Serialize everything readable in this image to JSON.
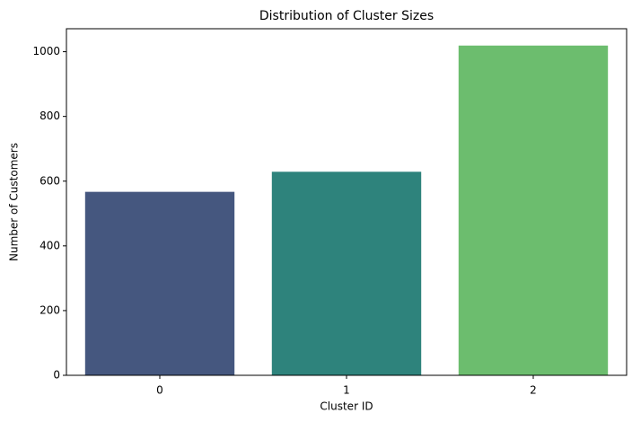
{
  "chart_data": {
    "type": "bar",
    "title": "Distribution of Cluster Sizes",
    "x_label": "Cluster ID",
    "y_label": "Number of Customers",
    "categories": [
      "0",
      "1",
      "2"
    ],
    "values": [
      567,
      629,
      1019
    ],
    "colors": [
      "#45577f",
      "#2e837c",
      "#6cbd6e"
    ],
    "ylim": [
      0,
      1071
    ],
    "yticks": [
      0,
      200,
      400,
      600,
      800,
      1000
    ],
    "grid": false
  }
}
